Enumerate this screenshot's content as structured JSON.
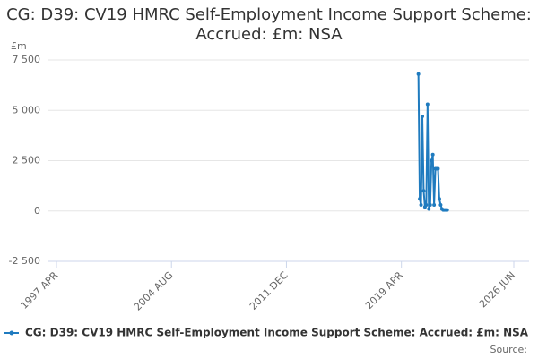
{
  "chart_data": {
    "type": "line",
    "title": "CG: D39: CV19 HMRC Self-Employment Income Support Scheme: Accrued: £m: NSA",
    "y_label": "£m",
    "source": "Source:",
    "x": [
      "2020-05",
      "2020-06",
      "2020-07",
      "2020-08",
      "2020-09",
      "2020-10",
      "2020-11",
      "2020-12",
      "2021-01",
      "2021-02",
      "2021-03",
      "2021-04",
      "2021-05",
      "2021-06",
      "2021-07",
      "2021-08",
      "2021-09",
      "2021-10",
      "2021-11",
      "2021-12",
      "2022-01",
      "2022-02",
      "2022-03"
    ],
    "series": [
      {
        "name": "CG: D39: CV19 HMRC Self-Employment Income Support Scheme: Accrued: £m: NSA",
        "color": "#1f7bbf",
        "values": [
          6800,
          600,
          300,
          4700,
          1000,
          200,
          300,
          5300,
          100,
          300,
          2500,
          2800,
          300,
          2100,
          2100,
          2100,
          600,
          300,
          100,
          50,
          50,
          50,
          50
        ]
      }
    ],
    "xlim": [
      "1997-04",
      "2026-06"
    ],
    "xticks": [
      {
        "value": "1997-04",
        "label": "1997 APR"
      },
      {
        "value": "2004-08",
        "label": "2004 AUG"
      },
      {
        "value": "2011-12",
        "label": "2011 DEC"
      },
      {
        "value": "2019-04",
        "label": "2019 APR"
      },
      {
        "value": "2026-06",
        "label": "2026 JUN"
      }
    ],
    "ylim": [
      -2500,
      7500
    ],
    "yticks": [
      {
        "value": 7500,
        "label": "7 500"
      },
      {
        "value": 5000,
        "label": "5 000"
      },
      {
        "value": 2500,
        "label": "2 500"
      },
      0,
      {
        "value": -2500,
        "label": "-2 500"
      }
    ],
    "grid": true
  }
}
